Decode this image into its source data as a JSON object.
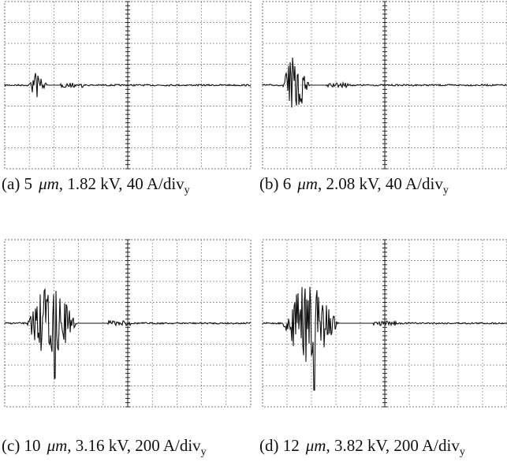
{
  "panels": [
    {
      "caption": {
        "prefix": "(a) 5",
        "unit": "μm",
        "params": ", 1.82 kV, 40 A/div",
        "subscript": "y"
      }
    },
    {
      "caption": {
        "prefix": "(b) 6",
        "unit": "μm",
        "params": ", 2.08 kV, 40 A/div",
        "subscript": "y"
      }
    },
    {
      "caption": {
        "prefix": "(c) 10",
        "unit": "μm",
        "params": ", 3.16 kV, 200 A/div",
        "subscript": "y"
      }
    },
    {
      "caption": {
        "prefix": "(d) 12",
        "unit": "μm",
        "params": ", 3.82 kV, 200 A/div",
        "subscript": "y"
      }
    }
  ]
}
